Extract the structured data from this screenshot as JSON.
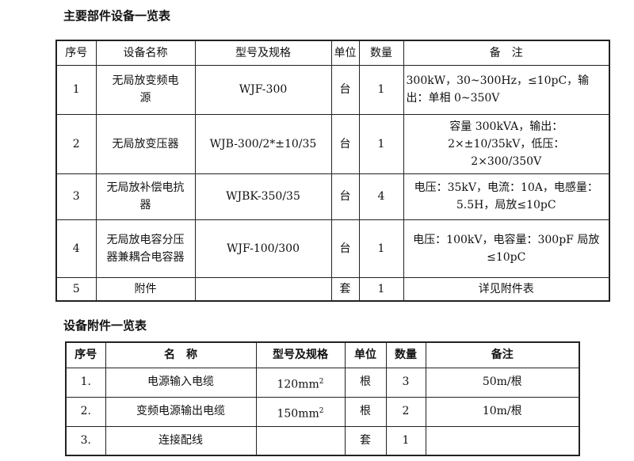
{
  "main_table": {
    "title": "主要部件设备一览表",
    "headers": [
      "序号",
      "设备名称",
      "型号及规格",
      "单位",
      "数量",
      "备　注"
    ],
    "rows": [
      {
        "no": "1",
        "name": "无局放变频电源",
        "model": "WJF-300",
        "unit": "台",
        "qty": "1",
        "note": "300kW，30~300Hz，≤10pC，输出：单相 0~350V"
      },
      {
        "no": "2",
        "name": "无局放变压器",
        "model": "WJB-300/2*±10/35",
        "unit": "台",
        "qty": "1",
        "note": "容量 300kVA，输出：2×±10/35kV，低压：2×300/350V"
      },
      {
        "no": "3",
        "name": "无局放补偿电抗器",
        "model": "WJBK-350/35",
        "unit": "台",
        "qty": "4",
        "note": "电压：35kV，电流：10A，电感量：5.5H，局放≤10pC"
      },
      {
        "no": "4",
        "name": "无局放电容分压器兼耦合电容器",
        "model": "WJF-100/300",
        "unit": "台",
        "qty": "1",
        "note": "电压：100kV，电容量：300pF 局放≤10pC"
      },
      {
        "no": "5",
        "name": "附件",
        "model": "",
        "unit": "套",
        "qty": "1",
        "note": "详见附件表"
      }
    ]
  },
  "accessory_table": {
    "title": "设备附件一览表",
    "headers": [
      "序号",
      "名　称",
      "型号及规格",
      "单位",
      "数量",
      "备注"
    ],
    "rows": [
      {
        "no": "1.",
        "name": "电源输入电缆",
        "model": "120mm",
        "model_sup": "2",
        "unit": "根",
        "qty": "3",
        "note": "50m/根"
      },
      {
        "no": "2.",
        "name": "变频电源输出电缆",
        "model": "150mm",
        "model_sup": "2",
        "unit": "根",
        "qty": "2",
        "note": "10m/根"
      },
      {
        "no": "3.",
        "name": "连接配线",
        "model": "",
        "model_sup": "",
        "unit": "套",
        "qty": "1",
        "note": ""
      }
    ]
  }
}
